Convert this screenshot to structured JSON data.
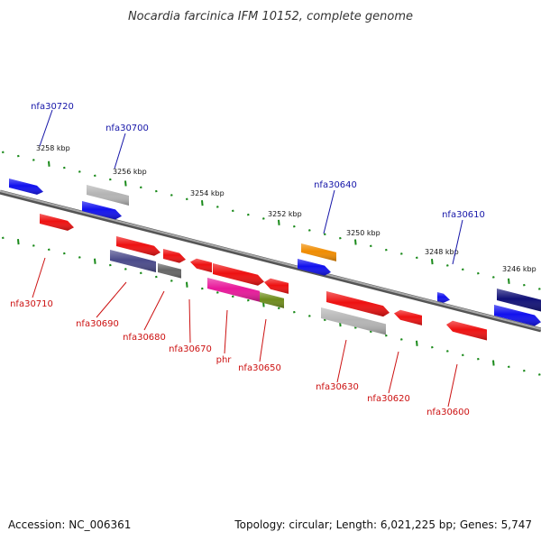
{
  "title": "Nocardia farcinica IFM 10152, complete genome",
  "footer": {
    "accession": "Accession: NC_006361",
    "summary": "Topology: circular; Length: 6,021,225 bp; Genes: 5,747"
  },
  "scale_labels": [
    "3258 kbp",
    "3256 kbp",
    "3254 kbp",
    "3252 kbp",
    "3250 kbp",
    "3248 kbp",
    "3246 kbp"
  ],
  "colors": {
    "backbone": "#888888",
    "ticks": "#1a8a1a",
    "forward_label": "#1515a8",
    "reverse_label": "#cc1111",
    "red": "#ee1111",
    "blue": "#1111ee",
    "navy": "#111177",
    "slate": "#4a4a8a",
    "silver": "#b4b4b4",
    "gray": "#666666",
    "orange": "#f08c00",
    "magenta": "#e8189a",
    "olive": "#6f8c1c"
  },
  "gene_labels": {
    "top": [
      "nfa30720",
      "nfa30700",
      "nfa30640",
      "nfa30610"
    ],
    "bottom": [
      "nfa30710",
      "nfa30690",
      "nfa30680",
      "nfa30670",
      "phr",
      "nfa30650",
      "nfa30630",
      "nfa30620",
      "nfa30600"
    ]
  }
}
